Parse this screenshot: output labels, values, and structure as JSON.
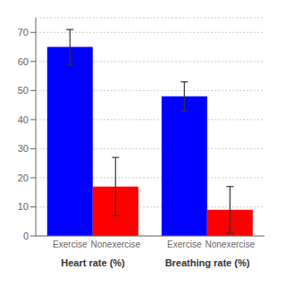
{
  "chart_data": {
    "type": "bar",
    "categories": [
      "Heart rate (%)",
      "Breathing rate (%)"
    ],
    "series": [
      {
        "name": "Exercise",
        "color": "blue",
        "values": [
          65,
          48
        ],
        "errors": [
          6,
          5
        ]
      },
      {
        "name": "Nonexercise",
        "color": "red",
        "values": [
          17,
          9
        ],
        "errors": [
          10,
          8
        ]
      }
    ],
    "ylim": [
      0,
      75
    ],
    "yticks": [
      0,
      10,
      20,
      30,
      40,
      50,
      60,
      70
    ],
    "grid": true
  }
}
